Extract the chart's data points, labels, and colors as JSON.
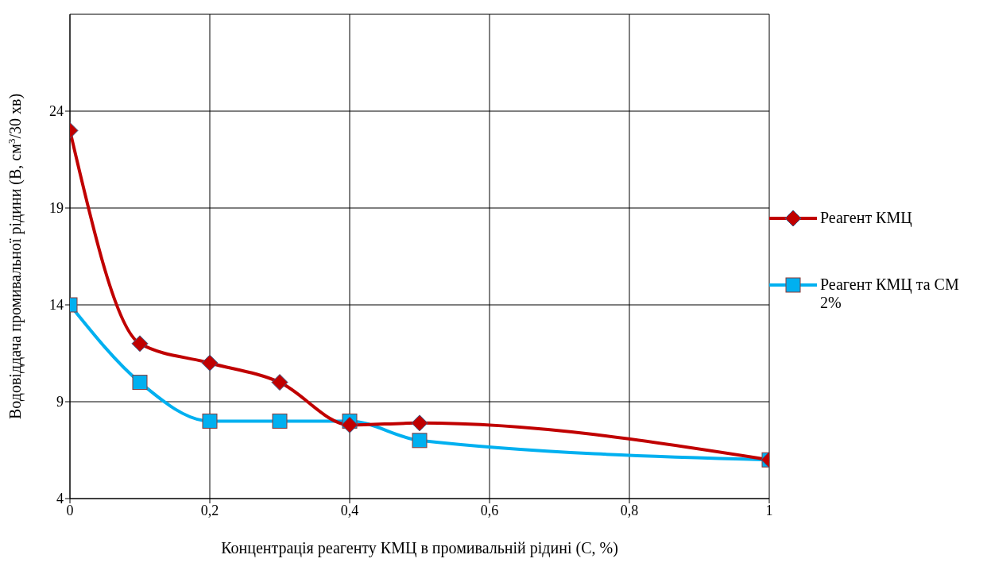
{
  "chart_data": {
    "type": "line",
    "xlabel": "Концентрація реагенту КМЦ в промивальній рідині (C, %)",
    "ylabel": "Водовіддача промивальної рідини (B, см$^{3}$/30 хв)",
    "x": [
      0,
      0.1,
      0.2,
      0.3,
      0.4,
      0.5,
      1
    ],
    "series": [
      {
        "name": "Реагент КМЦ",
        "color": "#c00000",
        "marker": "diamond",
        "values": [
          23,
          12,
          11,
          10,
          7.8,
          7.9,
          6
        ]
      },
      {
        "name": "Реагент КМЦ та СМ 2%",
        "color": "#00b0f0",
        "marker": "square",
        "values": [
          14,
          10,
          8,
          8,
          8,
          7,
          6
        ]
      }
    ],
    "xlim": [
      0,
      1
    ],
    "xticks": [
      0,
      {
        "value": 0.2,
        "label": "0,2"
      },
      {
        "value": 0.4,
        "label": "0,4"
      },
      {
        "value": 0.6,
        "label": "0,6"
      },
      {
        "value": 0.8,
        "label": "0,8"
      },
      1
    ],
    "ylim": [
      4,
      29
    ],
    "yticks": [
      4,
      9,
      14,
      19,
      24
    ],
    "grid": true,
    "legend": "right",
    "line_style": "solid"
  }
}
